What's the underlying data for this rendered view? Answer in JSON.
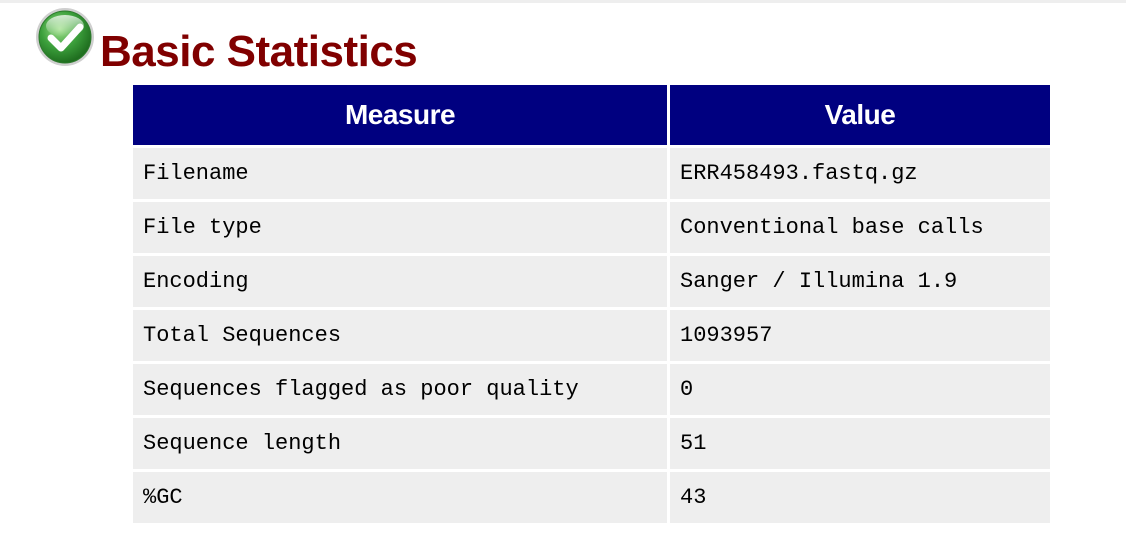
{
  "module": {
    "title": "Basic Statistics",
    "status_icon": "pass-check-icon",
    "status": "pass"
  },
  "table": {
    "headers": [
      "Measure",
      "Value"
    ],
    "rows": [
      {
        "measure": "Filename",
        "value": "ERR458493.fastq.gz"
      },
      {
        "measure": "File type",
        "value": "Conventional base calls"
      },
      {
        "measure": "Encoding",
        "value": "Sanger / Illumina 1.9"
      },
      {
        "measure": "Total Sequences",
        "value": "1093957"
      },
      {
        "measure": "Sequences flagged as poor quality",
        "value": "0"
      },
      {
        "measure": "Sequence length",
        "value": "51"
      },
      {
        "measure": "%GC",
        "value": "43"
      }
    ]
  },
  "colors": {
    "title": "#800000",
    "header_bg": "#000080",
    "header_text": "#ffffff",
    "cell_bg": "#eeeeee",
    "icon_green": "#3ca03c"
  }
}
